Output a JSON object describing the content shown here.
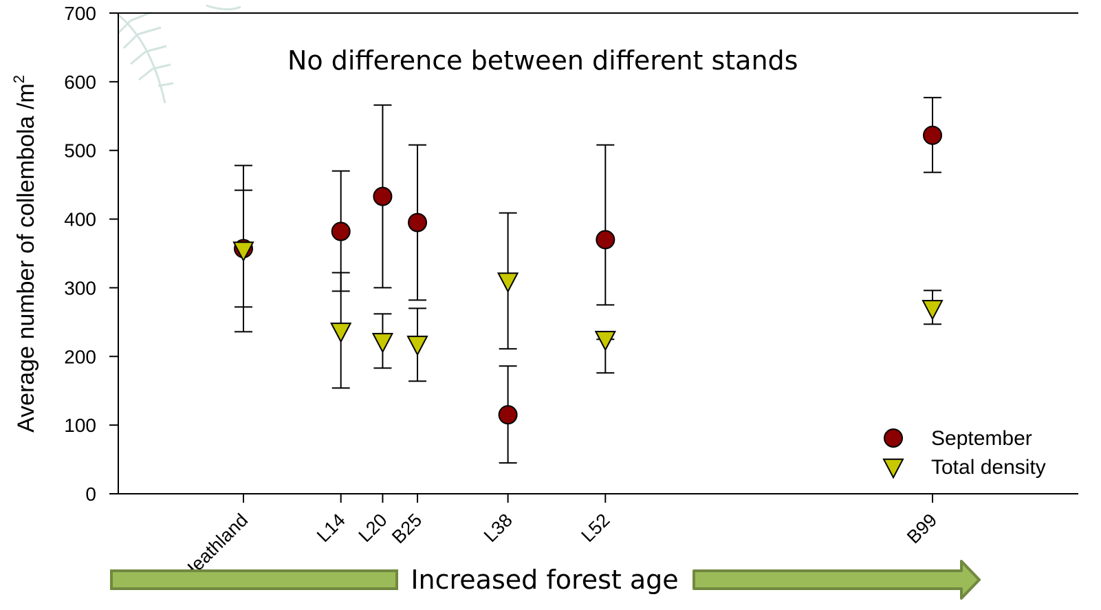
{
  "chart_data": {
    "type": "scatter",
    "title": "No difference between different stands",
    "ylabel": "Average number of collembola /m",
    "ylabel_superscript": "2",
    "xlabel": "Increased forest age",
    "ylim": [
      0,
      700
    ],
    "yticks": [
      0,
      100,
      200,
      300,
      400,
      500,
      600,
      700
    ],
    "legend_position": "bottom-right",
    "categories": [
      "Heathland",
      "L14",
      "L20",
      "B25",
      "L38",
      "L52",
      "B99"
    ],
    "x": [
      0,
      14,
      20,
      25,
      38,
      52,
      99
    ],
    "series": [
      {
        "name": "September",
        "marker": "circle",
        "color": "#8b0000",
        "values": [
          357,
          382,
          433,
          395,
          115,
          370,
          522
        ],
        "error_low": [
          272,
          295,
          300,
          282,
          45,
          275,
          468
        ],
        "error_high": [
          442,
          470,
          566,
          508,
          186,
          508,
          577
        ]
      },
      {
        "name": "Total density",
        "marker": "triangle-down",
        "color": "#c8c800",
        "values": [
          355,
          237,
          222,
          218,
          310,
          225,
          270
        ],
        "error_low": [
          236,
          154,
          183,
          164,
          211,
          176,
          247
        ],
        "error_high": [
          478,
          322,
          262,
          270,
          409,
          225,
          296
        ]
      }
    ],
    "grid": false
  },
  "colors": {
    "arrow_fill": "#9bbb59",
    "arrow_stroke": "#71893f"
  }
}
